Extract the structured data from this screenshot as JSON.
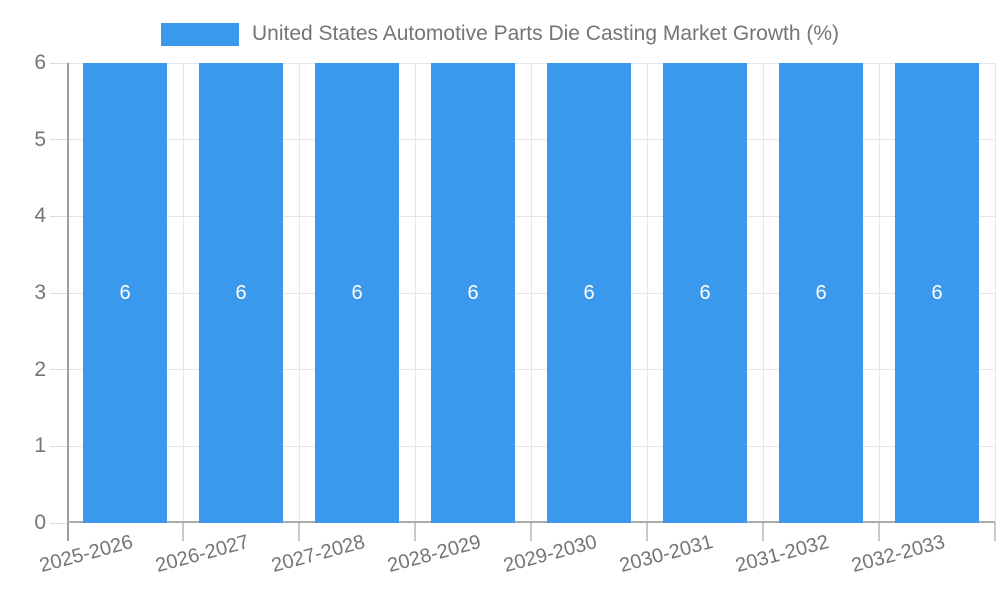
{
  "legend": {
    "label": "United States Automotive Parts Die Casting Market Growth (%)"
  },
  "colors": {
    "bar": "#3a99ec",
    "text": "#757575",
    "value_label": "#ffffff",
    "grid": "#e3e7ea",
    "axis": "#9e9e9e"
  },
  "chart_data": {
    "type": "bar",
    "title": "United States Automotive Parts Die Casting Market Growth (%)",
    "categories": [
      "2025-2026",
      "2026-2027",
      "2027-2028",
      "2028-2029",
      "2029-2030",
      "2030-2031",
      "2031-2032",
      "2032-2033"
    ],
    "values": [
      6,
      6,
      6,
      6,
      6,
      6,
      6,
      6
    ],
    "value_labels": [
      "6",
      "6",
      "6",
      "6",
      "6",
      "6",
      "6",
      "6"
    ],
    "xlabel": "",
    "ylabel": "",
    "ylim": [
      0,
      6
    ],
    "yticks": [
      0,
      1,
      2,
      3,
      4,
      5,
      6
    ],
    "grid": true,
    "legend_position": "top",
    "x_label_rotation_deg": -15
  }
}
